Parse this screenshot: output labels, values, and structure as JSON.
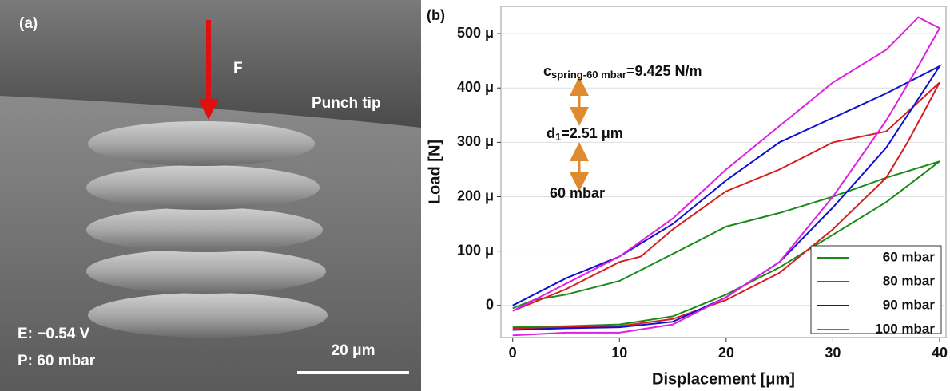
{
  "panel_a": {
    "label": "(a)",
    "force": "F",
    "punch": "Punch tip",
    "potential": "E: −0.54 V",
    "pressure": "P: 60 mbar",
    "scale": "20 μm"
  },
  "chart_data": {
    "type": "line",
    "label": "(b)",
    "x_label": "Displacement [μm]",
    "y_label": "Load [N]",
    "xlim": [
      -1.1,
      40.6
    ],
    "xticks": [
      0,
      10,
      20,
      30,
      40
    ],
    "ylim": [
      -5.9e-05,
      0.00055
    ],
    "yticks": [
      0,
      {
        "value": 0.0001,
        "label": "100 μ"
      },
      {
        "value": 0.0002,
        "label": "200 μ"
      },
      {
        "value": 0.0003,
        "label": "300 μ"
      },
      {
        "value": 0.0004,
        "label": "400 μ"
      },
      {
        "value": 0.0005,
        "label": "500 μ"
      }
    ],
    "grid": true,
    "legend": "lower right",
    "annotations": {
      "c": "c",
      "c_sub": "spring-60 mbar",
      "c_rest": "=9.425 N/m",
      "d": "d",
      "d_sub": "1",
      "d_rest": "=2.51 μm",
      "p": "60 mbar"
    },
    "series": [
      {
        "name": "60 mbar",
        "color": "#1a8a1a",
        "x": [
          0,
          2,
          5,
          10,
          15,
          20,
          25,
          30,
          35,
          40,
          35,
          30,
          25,
          20,
          15,
          10,
          5,
          0
        ],
        "values": [
          -5e-06,
          1e-05,
          2e-05,
          4.5e-05,
          9.5e-05,
          0.000145,
          0.00017,
          0.0002,
          0.000235,
          0.000265,
          0.00019,
          0.00013,
          7e-05,
          2e-05,
          -2e-05,
          -3.5e-05,
          -3.8e-05,
          -4e-05
        ]
      },
      {
        "name": "80 mbar",
        "color": "#d42020",
        "x": [
          0,
          5,
          10,
          12,
          15,
          20,
          25,
          30,
          35,
          40,
          37,
          35,
          30,
          25,
          20,
          15,
          10,
          5,
          0
        ],
        "values": [
          -1e-05,
          3e-05,
          8e-05,
          9e-05,
          0.00014,
          0.00021,
          0.00025,
          0.0003,
          0.00032,
          0.00041,
          0.0003,
          0.000235,
          0.00014,
          6e-05,
          1e-05,
          -2.5e-05,
          -3.8e-05,
          -4e-05,
          -4.2e-05
        ]
      },
      {
        "name": "90 mbar",
        "color": "#1010d0",
        "x": [
          0,
          5,
          10,
          15,
          20,
          25,
          30,
          35,
          40,
          37,
          35,
          30,
          25,
          20,
          15,
          10,
          5,
          0
        ],
        "values": [
          0,
          5e-05,
          9e-05,
          0.00015,
          0.00023,
          0.0003,
          0.000345,
          0.00039,
          0.00044,
          0.00035,
          0.00029,
          0.00018,
          8e-05,
          1.5e-05,
          -3e-05,
          -4e-05,
          -4.2e-05,
          -4.5e-05
        ]
      },
      {
        "name": "100 mbar",
        "color": "#e020e0",
        "x": [
          0,
          5,
          10,
          15,
          20,
          25,
          30,
          35,
          38,
          40,
          38,
          35,
          30,
          25,
          20,
          15,
          10,
          5,
          0
        ],
        "values": [
          -1e-05,
          4e-05,
          9e-05,
          0.00016,
          0.00025,
          0.00033,
          0.00041,
          0.00047,
          0.00053,
          0.00051,
          0.00044,
          0.00034,
          0.0002,
          8e-05,
          1.5e-05,
          -3.5e-05,
          -5e-05,
          -5e-05,
          -5.5e-05
        ]
      }
    ]
  }
}
